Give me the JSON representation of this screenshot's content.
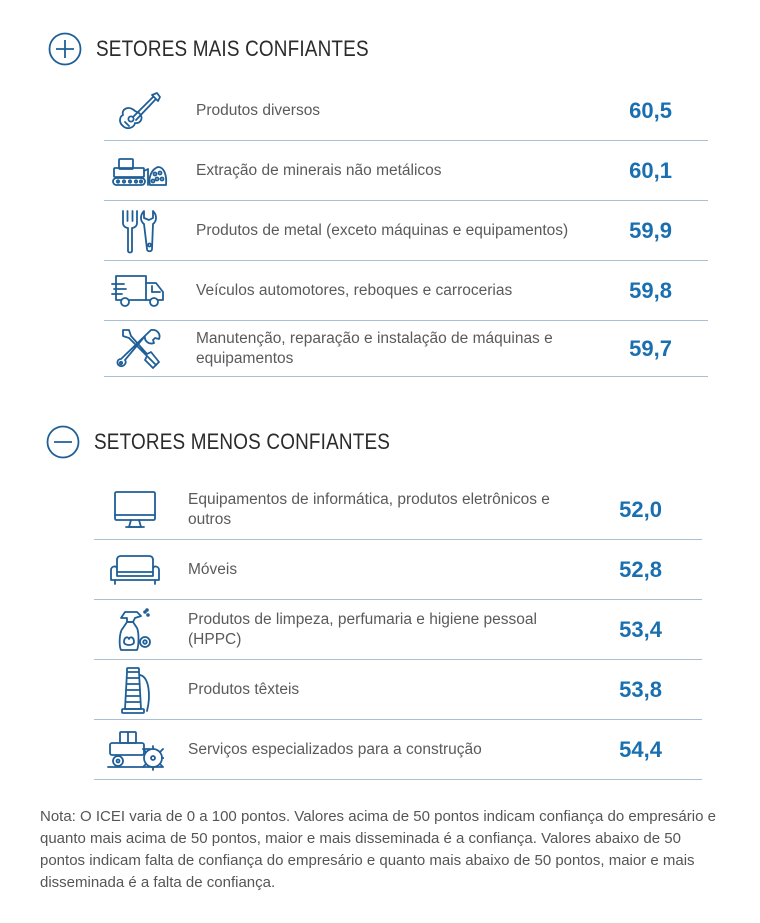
{
  "colors": {
    "accent": "#1a6fb0",
    "icon": "#1f5f97",
    "divider": "#a9bfd3",
    "heading": "#2b2b2b",
    "text": "#555555"
  },
  "top_section": {
    "icon": "plus-circle-icon",
    "title": "SETORES MAIS CONFIANTES",
    "rows": [
      {
        "icon": "guitar-icon",
        "label": "Produtos diversos",
        "value": "60,5"
      },
      {
        "icon": "bulldozer-minerals-icon",
        "label": "Extração de minerais não metálicos",
        "value": "60,1"
      },
      {
        "icon": "fork-wrench-icon",
        "label": "Produtos de metal (exceto máquinas e equipamentos)",
        "value": "59,9"
      },
      {
        "icon": "truck-icon",
        "label": "Veículos automotores, reboques e carrocerias",
        "value": "59,8"
      },
      {
        "icon": "tools-cross-icon",
        "label": "Manutenção, reparação e instalação de máquinas e equipamentos",
        "value": "59,7"
      }
    ]
  },
  "bottom_section": {
    "icon": "minus-circle-icon",
    "title": "SETORES MENOS CONFIANTES",
    "rows": [
      {
        "icon": "monitor-icon",
        "label": "Equipamentos de informática, produtos eletrônicos e outros",
        "value": "52,0"
      },
      {
        "icon": "sofa-icon",
        "label": "Móveis",
        "value": "52,8"
      },
      {
        "icon": "spray-bottle-icon",
        "label": "Produtos de limpeza, perfumaria e higiene pessoal (HPPC)",
        "value": "53,4"
      },
      {
        "icon": "thread-spool-icon",
        "label": "Produtos têxteis",
        "value": "53,8"
      },
      {
        "icon": "road-roller-icon",
        "label": "Serviços especializados para a construção",
        "value": "54,4"
      }
    ]
  },
  "note": "Nota: O ICEI varia de 0 a 100 pontos. Valores acima de 50 pontos indicam confiança do empresário e quanto mais acima de 50 pontos, maior e mais disseminada é a confiança. Valores abaixo de 50 pontos indicam falta de confiança do empresário e quanto mais abaixo de 50 pontos, maior e mais disseminada é a falta de confiança."
}
